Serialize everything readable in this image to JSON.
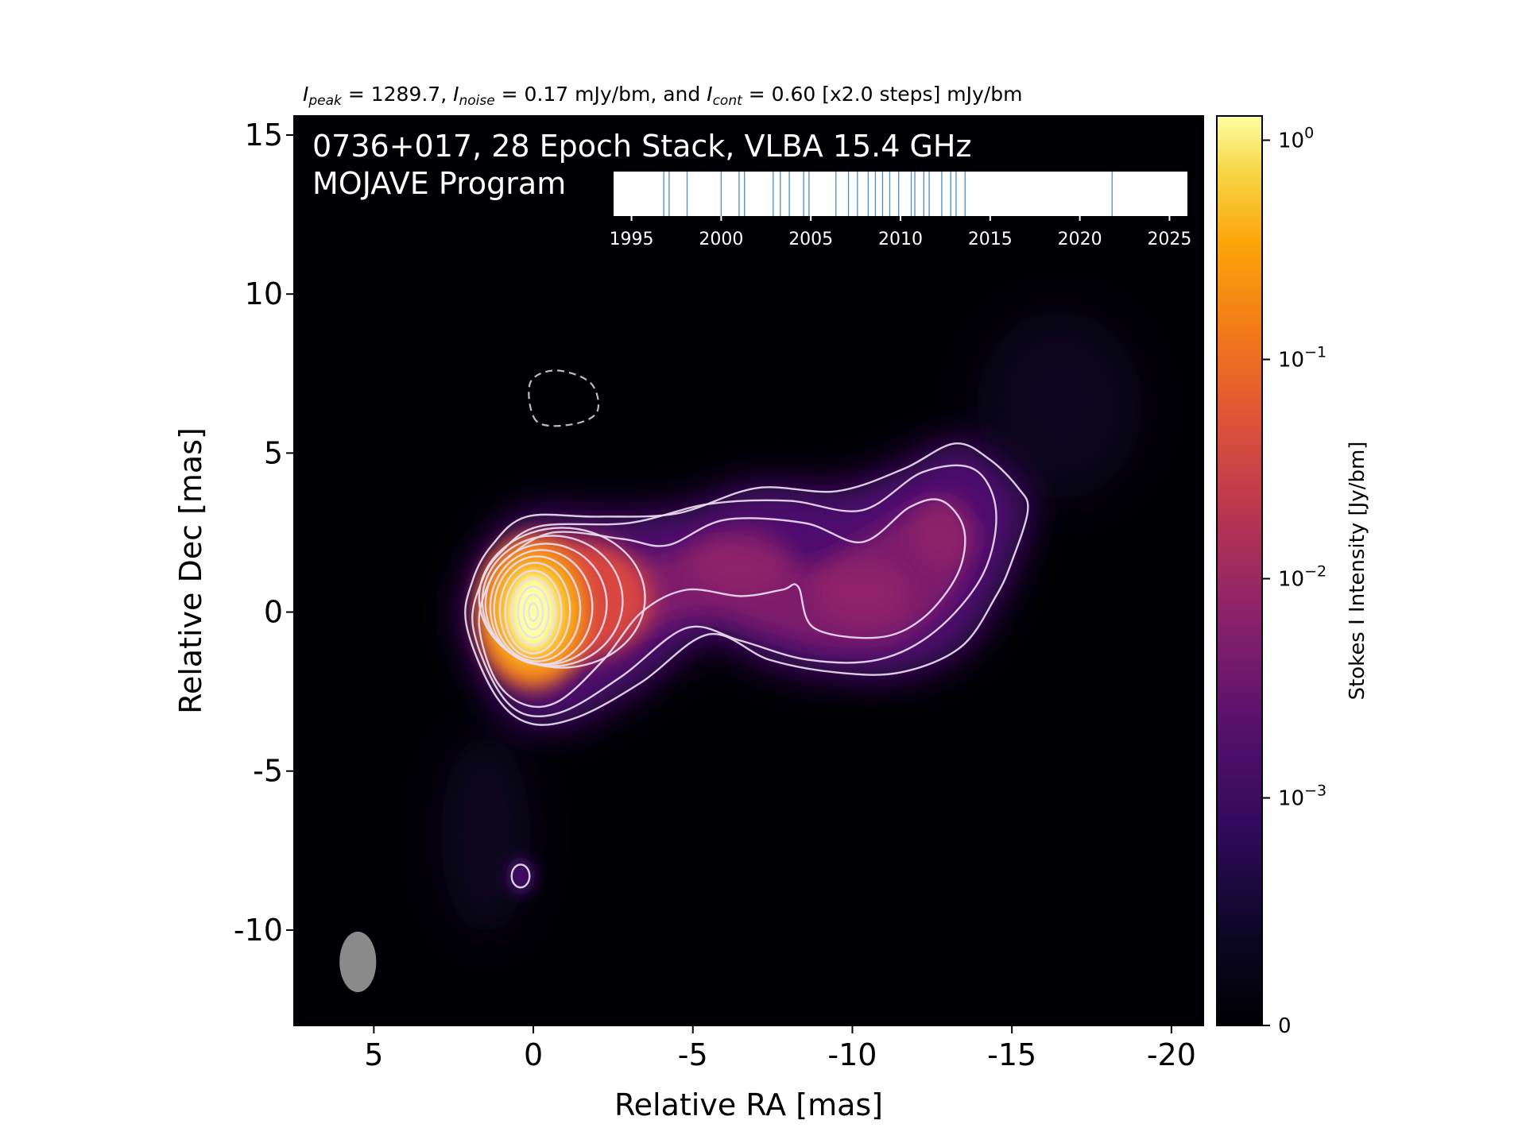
{
  "chart_data": {
    "type": "heatmap",
    "header": {
      "peak_sym": "I",
      "peak_sub": "peak",
      "peak_text": " = 1289.7, ",
      "noise_sym": "I",
      "noise_sub": "noise",
      "noise_text": " = 0.17 mJy/bm, and ",
      "cont_sym": "I",
      "cont_sub": "cont",
      "cont_text": " = 0.60 [x2.0 steps] mJy/bm"
    },
    "title_line1": "0736+017, 28 Epoch Stack, VLBA 15.4 GHz",
    "title_line2": "MOJAVE Program",
    "xlabel": "Relative RA [mas]",
    "ylabel": "Relative Dec [mas]",
    "xlim": [
      7.5,
      -21.0
    ],
    "ylim": [
      -13.0,
      15.6
    ],
    "xticks": [
      5,
      0,
      -5,
      -10,
      -15,
      -20
    ],
    "xtick_labels": [
      "5",
      "0",
      "-5",
      "-10",
      "-15",
      "-20"
    ],
    "yticks": [
      15,
      10,
      5,
      0,
      -5,
      -10
    ],
    "ytick_labels": [
      "15",
      "10",
      "5",
      "0",
      "-5",
      "-10"
    ],
    "peak_position": [
      0.0,
      0.0
    ],
    "beam": {
      "ra": 5.5,
      "dec": -11.0,
      "major_mas": 1.9,
      "minor_mas": 1.15,
      "pa_deg": 0
    },
    "colormap": "inferno",
    "colorbar": {
      "label": "Stokes I Intensity [Jy/bm]",
      "scale": "log",
      "ticks": [
        {
          "value": 1,
          "base": "10",
          "exp": "0"
        },
        {
          "value": 0.1,
          "base": "10",
          "exp": "−1"
        },
        {
          "value": 0.01,
          "base": "10",
          "exp": "−2"
        },
        {
          "value": 0.001,
          "base": "10",
          "exp": "−3"
        },
        {
          "value": 0,
          "base": "0",
          "exp": ""
        }
      ]
    },
    "epoch_timeline": {
      "xlim": [
        1994,
        2026
      ],
      "ticks": [
        1995,
        2000,
        2005,
        2010,
        2015,
        2020,
        2025
      ],
      "tick_labels": [
        "1995",
        "2000",
        "2005",
        "2010",
        "2015",
        "2020",
        "2025"
      ],
      "epochs": [
        1996.8,
        1997.1,
        1998.1,
        2000.0,
        2001.0,
        2001.3,
        2002.9,
        2003.3,
        2003.8,
        2004.6,
        2004.9,
        2006.4,
        2007.1,
        2007.6,
        2008.2,
        2008.6,
        2009.0,
        2009.4,
        2009.9,
        2010.6,
        2010.8,
        2011.3,
        2011.6,
        2012.3,
        2012.8,
        2013.1,
        2013.6,
        2021.8
      ]
    },
    "contours": {
      "levels_mjy": [
        0.6,
        1.2,
        2.4,
        4.8,
        9.6,
        19.2,
        38.4,
        76.8,
        153.6,
        307.2,
        614.4,
        1228.8
      ],
      "negative_level_mjy": -0.6
    }
  }
}
